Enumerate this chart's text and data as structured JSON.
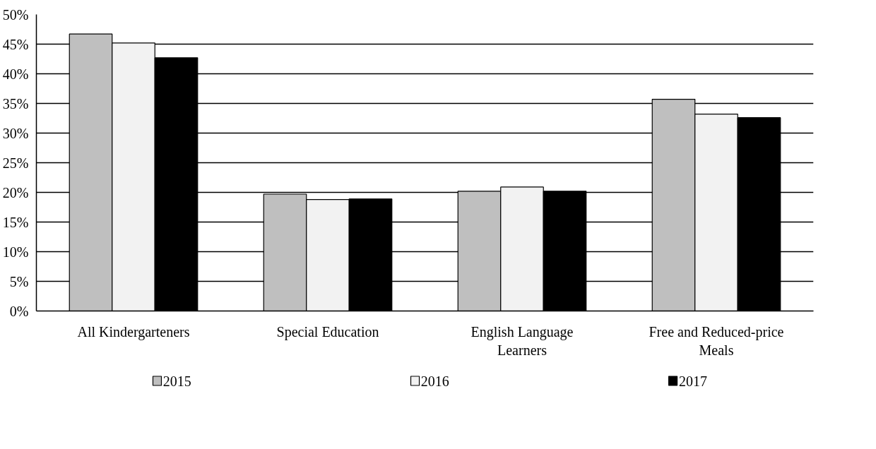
{
  "chart_data": {
    "type": "bar",
    "categories": [
      "All Kindergarteners",
      "Special Education",
      "English Language Learners",
      "Free and Reduced-price Meals"
    ],
    "series": [
      {
        "name": "2015",
        "color": "#bfbfbf",
        "values": [
          46.7,
          19.7,
          20.2,
          35.7
        ]
      },
      {
        "name": "2016",
        "color": "#f2f2f2",
        "values": [
          45.2,
          18.8,
          20.9,
          33.2
        ]
      },
      {
        "name": "2017",
        "color": "#000000",
        "values": [
          42.7,
          18.9,
          20.2,
          32.6
        ]
      }
    ],
    "ylim": [
      0,
      50
    ],
    "yticks": [
      {
        "value": 0,
        "label": "0%"
      },
      {
        "value": 5,
        "label": "5%"
      },
      {
        "value": 10,
        "label": "10%"
      },
      {
        "value": 15,
        "label": "15%"
      },
      {
        "value": 20,
        "label": "20%"
      },
      {
        "value": 25,
        "label": "25%"
      },
      {
        "value": 30,
        "label": "30%"
      },
      {
        "value": 35,
        "label": "35%"
      },
      {
        "value": 40,
        "label": "40%"
      },
      {
        "value": 45,
        "label": "45%"
      },
      {
        "value": 50,
        "label": "50%"
      }
    ],
    "grid": "y",
    "legend": "bottom"
  }
}
